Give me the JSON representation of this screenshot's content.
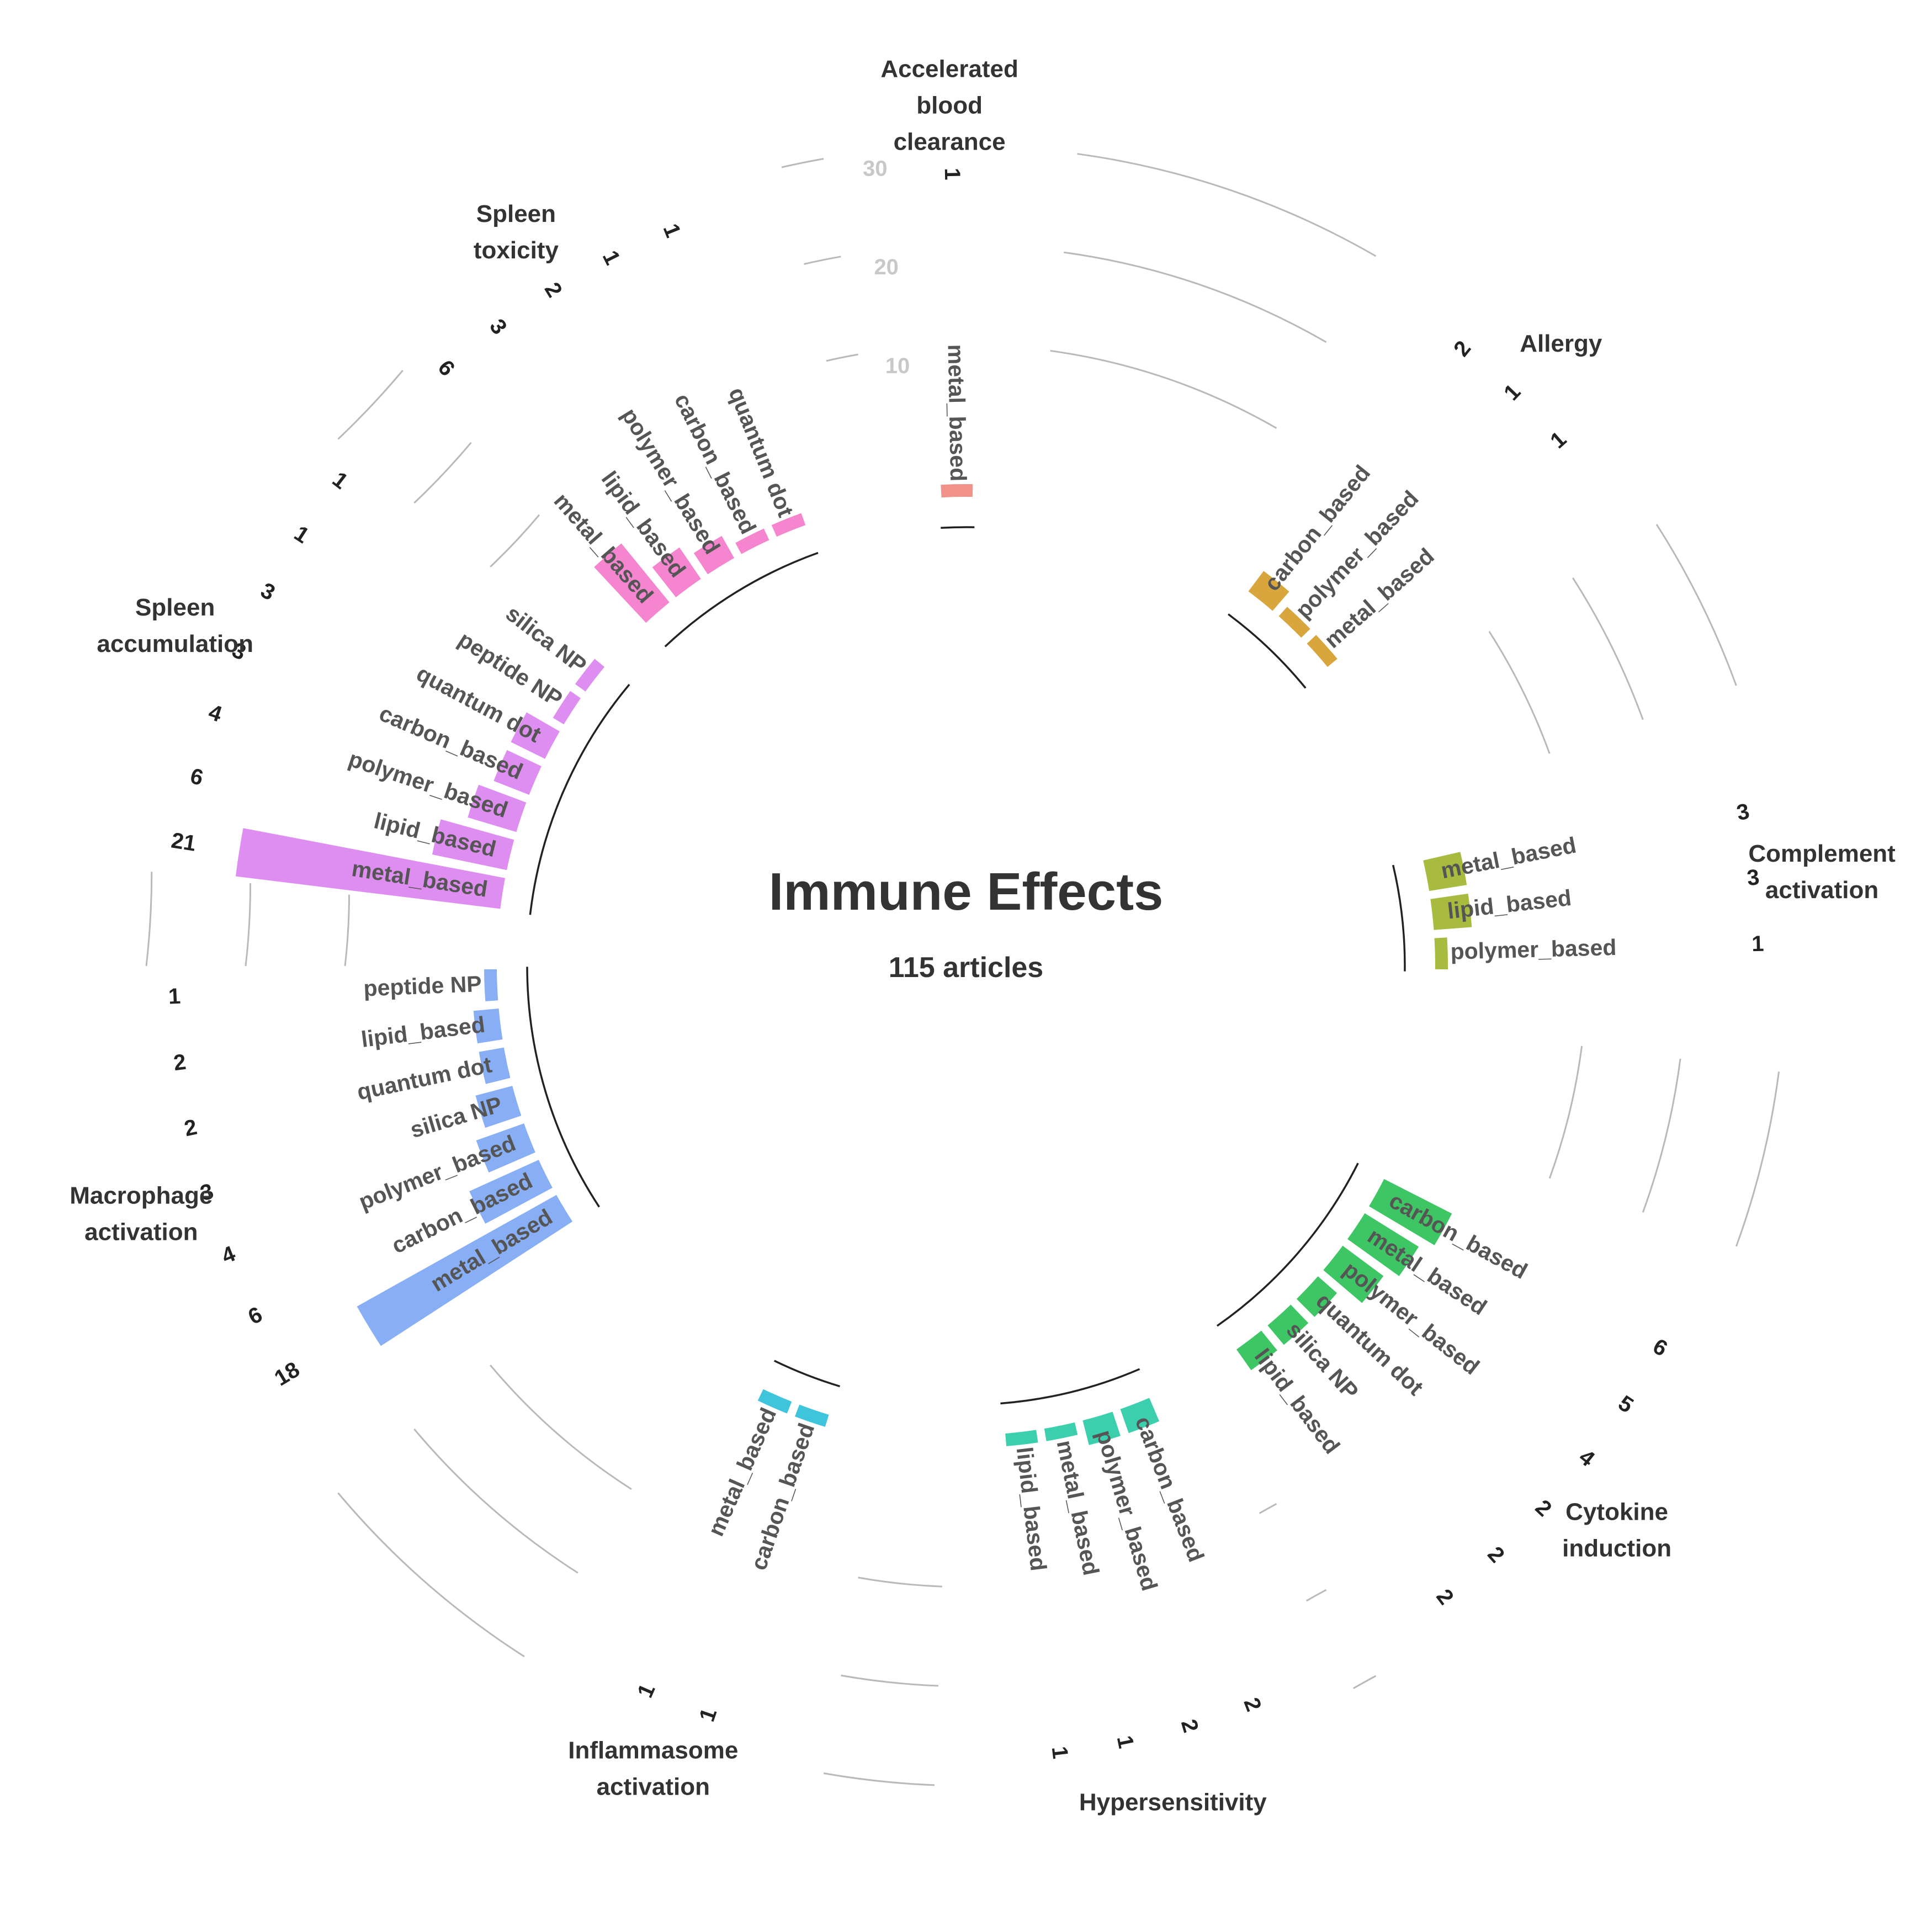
{
  "chart_data": {
    "type": "bar",
    "layout": "circular",
    "title": "Immune Effects",
    "subtitle": "115 articles",
    "radial_ticks": [
      "10",
      "20",
      "30"
    ],
    "rlim": [
      0,
      30
    ],
    "groups": [
      {
        "name": "Accelerated\nblood\nclearance",
        "color": "#F0928A",
        "bars": [
          {
            "label": "metal_based",
            "value": 1
          }
        ]
      },
      {
        "name": "Allergy",
        "color": "#D8A63C",
        "bars": [
          {
            "label": "carbon_based",
            "value": 2
          },
          {
            "label": "polymer_based",
            "value": 1
          },
          {
            "label": "metal_based",
            "value": 1
          }
        ]
      },
      {
        "name": "Complement\nactivation",
        "color": "#A8BB3E",
        "bars": [
          {
            "label": "metal_based",
            "value": 3
          },
          {
            "label": "lipid_based",
            "value": 3
          },
          {
            "label": "polymer_based",
            "value": 1
          }
        ]
      },
      {
        "name": "Cytokine\ninduction",
        "color": "#3EC665",
        "bars": [
          {
            "label": "carbon_based",
            "value": 6
          },
          {
            "label": "metal_based",
            "value": 5
          },
          {
            "label": "polymer_based",
            "value": 4
          },
          {
            "label": "quantum dot",
            "value": 2
          },
          {
            "label": "silica NP",
            "value": 2
          },
          {
            "label": "lipid_based",
            "value": 2
          }
        ]
      },
      {
        "name": "Hypersensitivity",
        "color": "#3CCFAE",
        "bars": [
          {
            "label": "carbon_based",
            "value": 2
          },
          {
            "label": "polymer_based",
            "value": 2
          },
          {
            "label": "metal_based",
            "value": 1
          },
          {
            "label": "lipid_based",
            "value": 1
          }
        ]
      },
      {
        "name": "Inflammasome\nactivation",
        "color": "#3EC4DB",
        "bars": [
          {
            "label": "carbon_based",
            "value": 1
          },
          {
            "label": "metal_based",
            "value": 1
          }
        ]
      },
      {
        "name": "Macrophage\nactivation",
        "color": "#88AFF5",
        "bars": [
          {
            "label": "metal_based",
            "value": 18
          },
          {
            "label": "carbon_based",
            "value": 6
          },
          {
            "label": "polymer_based",
            "value": 4
          },
          {
            "label": "silica NP",
            "value": 3
          },
          {
            "label": "quantum dot",
            "value": 2
          },
          {
            "label": "lipid_based",
            "value": 2
          },
          {
            "label": "peptide NP",
            "value": 1
          }
        ]
      },
      {
        "name": "Spleen\naccumulation",
        "color": "#DE8EF1",
        "bars": [
          {
            "label": "metal_based",
            "value": 21
          },
          {
            "label": "lipid_based",
            "value": 6
          },
          {
            "label": "polymer_based",
            "value": 4
          },
          {
            "label": "carbon_based",
            "value": 3
          },
          {
            "label": "quantum dot",
            "value": 3
          },
          {
            "label": "peptide NP",
            "value": 1
          },
          {
            "label": "silica NP",
            "value": 1
          }
        ]
      },
      {
        "name": "Spleen\ntoxicity",
        "color": "#F585CF",
        "bars": [
          {
            "label": "metal_based",
            "value": 6
          },
          {
            "label": "lipid_based",
            "value": 3
          },
          {
            "label": "polymer_based",
            "value": 2
          },
          {
            "label": "carbon_based",
            "value": 1
          },
          {
            "label": "quantum dot",
            "value": 1
          }
        ]
      }
    ]
  }
}
